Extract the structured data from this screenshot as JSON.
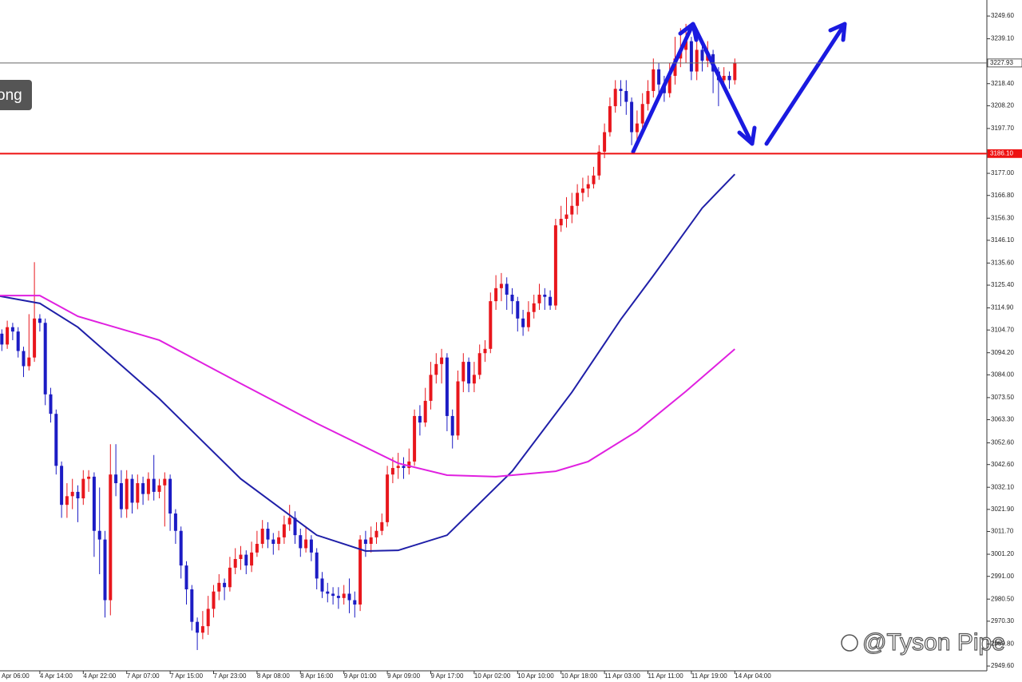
{
  "chart_data": {
    "type": "candlestick",
    "categories": [
      "Apr 06:00",
      null,
      null,
      null,
      null,
      null,
      null,
      null,
      "4 Apr 14:00",
      null,
      null,
      null,
      null,
      null,
      null,
      null,
      "4 Apr 22:00",
      null,
      null,
      null,
      null,
      null,
      null,
      null,
      "7 Apr 07:00",
      null,
      null,
      null,
      null,
      null,
      null,
      null,
      "7 Apr 15:00",
      null,
      null,
      null,
      null,
      null,
      null,
      null,
      "7 Apr 23:00",
      null,
      null,
      null,
      null,
      null,
      null,
      null,
      "8 Apr 08:00",
      null,
      null,
      null,
      null,
      null,
      null,
      null,
      "8 Apr 16:00",
      null,
      null,
      null,
      null,
      null,
      null,
      null,
      "9 Apr 01:00",
      null,
      null,
      null,
      null,
      null,
      null,
      null,
      "9 Apr 09:00",
      null,
      null,
      null,
      null,
      null,
      null,
      null,
      "9 Apr 17:00",
      null,
      null,
      null,
      null,
      null,
      null,
      null,
      "10 Apr 02:00",
      null,
      null,
      null,
      null,
      null,
      null,
      null,
      "10 Apr 10:00",
      null,
      null,
      null,
      null,
      null,
      null,
      null,
      "10 Apr 18:00",
      null,
      null,
      null,
      null,
      null,
      null,
      null,
      "11 Apr 03:00",
      null,
      null,
      null,
      null,
      null,
      null,
      null,
      "11 Apr 11:00",
      null,
      null,
      null,
      null,
      null,
      null,
      null,
      "11 Apr 19:00",
      null,
      null,
      null,
      null,
      null,
      null,
      null,
      "14 Apr 04:00"
    ],
    "open": [
      3100,
      3103,
      3098,
      3106,
      3104,
      3095,
      3088,
      3092,
      3110,
      3108,
      3075,
      3066,
      3042,
      3024,
      3028,
      3030,
      3027,
      3036,
      3037,
      3012,
      3008,
      2980,
      3038,
      3034,
      3022,
      3036,
      3025,
      3034,
      3029,
      3036,
      3030,
      3033,
      3036,
      3020,
      3012,
      2996,
      2985,
      2970,
      2965,
      2968,
      2976,
      2984,
      2988,
      2986,
      2995,
      2999,
      3001,
      2996,
      3002,
      3006,
      3013,
      3008,
      3006,
      3009,
      3015,
      3018,
      3010,
      3004,
      3008,
      3002,
      2990,
      2984,
      2983,
      2982,
      2981,
      2983,
      2980,
      2978,
      3008,
      3006,
      3009,
      3012,
      3016,
      3038,
      3041,
      3042,
      3041,
      3044,
      3065,
      3062,
      3072,
      3084,
      3089,
      3092,
      3065,
      3056,
      3081,
      3090,
      3080,
      3084,
      3094,
      3096,
      3118,
      3124,
      3126,
      3121,
      3118,
      3110,
      3106,
      3113,
      3117,
      3121,
      3120,
      3116,
      3153,
      3156,
      3158,
      3162,
      3168,
      3170,
      3172,
      3176,
      3187,
      3196,
      3208,
      3216,
      3215,
      3210,
      3196,
      3200,
      3209,
      3215,
      3225,
      3218,
      3214,
      3222,
      3230,
      3234,
      3238,
      3224,
      3234,
      3229,
      3232,
      3224,
      3220,
      3222,
      3220
    ],
    "high": [
      3106,
      3105,
      3109,
      3108,
      3106,
      3097,
      3112,
      3136,
      3112,
      3110,
      3078,
      3068,
      3044,
      3034,
      3036,
      3033,
      3040,
      3040,
      3039,
      3032,
      3012,
      3052,
      3052,
      3040,
      3040,
      3038,
      3038,
      3037,
      3039,
      3047,
      3036,
      3039,
      3038,
      3022,
      3014,
      2998,
      2987,
      2972,
      2975,
      2982,
      2987,
      2992,
      2990,
      3000,
      3004,
      3005,
      3003,
      3007,
      3012,
      3017,
      3016,
      3011,
      3012,
      3019,
      3024,
      3021,
      3013,
      3014,
      3010,
      3004,
      2993,
      2988,
      2986,
      2986,
      2987,
      2990,
      2984,
      3010,
      3012,
      3014,
      3016,
      3020,
      3042,
      3046,
      3048,
      3046,
      3050,
      3068,
      3070,
      3078,
      3090,
      3094,
      3096,
      3094,
      3068,
      3086,
      3094,
      3092,
      3090,
      3098,
      3100,
      3122,
      3130,
      3131,
      3129,
      3124,
      3120,
      3114,
      3118,
      3121,
      3126,
      3124,
      3123,
      3156,
      3162,
      3166,
      3168,
      3172,
      3175,
      3176,
      3180,
      3190,
      3200,
      3212,
      3220,
      3220,
      3220,
      3212,
      3206,
      3214,
      3220,
      3230,
      3228,
      3222,
      3228,
      3240,
      3244,
      3246,
      3240,
      3238,
      3236,
      3238,
      3234,
      3226,
      3226,
      3224,
      3230
    ],
    "low": [
      3097,
      3095,
      3096,
      3100,
      3092,
      3083,
      3086,
      3090,
      3104,
      3070,
      3062,
      3038,
      3018,
      3018,
      3022,
      3016,
      3024,
      3030,
      3000,
      2992,
      2972,
      2973,
      3028,
      3018,
      3018,
      3020,
      3022,
      3024,
      3026,
      3026,
      3027,
      3014,
      3012,
      3006,
      2990,
      2978,
      2966,
      2957,
      2962,
      2964,
      2972,
      2980,
      2980,
      2984,
      2992,
      2994,
      2992,
      2993,
      3000,
      3004,
      3004,
      3001,
      3003,
      3006,
      3012,
      3006,
      3000,
      3002,
      2998,
      2985,
      2981,
      2979,
      2978,
      2976,
      2978,
      2974,
      2972,
      2975,
      3000,
      3002,
      3006,
      3010,
      3014,
      3034,
      3036,
      3036,
      3038,
      3042,
      3056,
      3060,
      3068,
      3080,
      3080,
      3058,
      3050,
      3054,
      3076,
      3076,
      3076,
      3082,
      3090,
      3094,
      3114,
      3118,
      3114,
      3112,
      3104,
      3102,
      3104,
      3110,
      3114,
      3114,
      3114,
      3114,
      3150,
      3152,
      3154,
      3158,
      3164,
      3166,
      3170,
      3174,
      3184,
      3194,
      3205,
      3208,
      3204,
      3190,
      3192,
      3198,
      3206,
      3212,
      3212,
      3210,
      3212,
      3218,
      3226,
      3228,
      3220,
      3220,
      3224,
      3226,
      3214,
      3208,
      3216,
      3216,
      3218
    ],
    "close": [
      3103,
      3098,
      3106,
      3104,
      3095,
      3088,
      3092,
      3110,
      3108,
      3075,
      3066,
      3042,
      3024,
      3028,
      3030,
      3027,
      3036,
      3037,
      3012,
      3008,
      2980,
      3038,
      3034,
      3022,
      3036,
      3025,
      3034,
      3029,
      3036,
      3030,
      3033,
      3036,
      3020,
      3012,
      2996,
      2985,
      2970,
      2965,
      2968,
      2976,
      2984,
      2988,
      2986,
      2995,
      2999,
      3001,
      2996,
      3002,
      3006,
      3013,
      3008,
      3006,
      3009,
      3015,
      3018,
      3010,
      3004,
      3008,
      3002,
      2990,
      2984,
      2983,
      2982,
      2981,
      2983,
      2980,
      2978,
      3008,
      3006,
      3009,
      3012,
      3016,
      3038,
      3041,
      3042,
      3041,
      3044,
      3065,
      3062,
      3072,
      3084,
      3089,
      3092,
      3065,
      3056,
      3081,
      3090,
      3080,
      3084,
      3094,
      3096,
      3118,
      3124,
      3126,
      3121,
      3118,
      3110,
      3106,
      3113,
      3117,
      3121,
      3120,
      3116,
      3153,
      3156,
      3158,
      3162,
      3168,
      3170,
      3172,
      3176,
      3187,
      3196,
      3208,
      3216,
      3215,
      3210,
      3196,
      3200,
      3209,
      3215,
      3225,
      3218,
      3214,
      3222,
      3230,
      3234,
      3238,
      3224,
      3234,
      3229,
      3232,
      3224,
      3220,
      3222,
      3220,
      3227.93
    ],
    "up_color": "#e8161c",
    "down_color": "#1c1cc4",
    "series": [
      {
        "color": "#1f1fa8",
        "x": [
          0,
          8,
          15,
          30,
          45,
          59,
          68,
          74,
          83,
          95,
          106,
          115,
          121,
          130,
          136
        ],
        "values": [
          3120.6,
          3117,
          3106,
          3073,
          3036,
          3010,
          3002.7,
          3003,
          3010,
          3039.5,
          3076,
          3109.6,
          3129.8,
          3161,
          3176.6
        ]
      },
      {
        "color": "#e020e0",
        "x": [
          0,
          8,
          15,
          30,
          45,
          59,
          74,
          83,
          92,
          103,
          109,
          118,
          127,
          136
        ],
        "values": [
          3120.6,
          3120.6,
          3111,
          3100,
          3080,
          3061.6,
          3043.2,
          3037.7,
          3037,
          3039.5,
          3044,
          3058,
          3076.4,
          3095.9
        ]
      }
    ],
    "hlines": [
      {
        "value": 3186.1,
        "label": "3186.10",
        "color": "#ee1111"
      },
      {
        "value": 3227.93,
        "label": "3227.93",
        "color": "#666666"
      }
    ],
    "ylim": [
      2947.4,
      3257.0
    ],
    "yticks": [
      {
        "value": 3249.6,
        "label": "3249.60"
      },
      {
        "value": 3239.1,
        "label": "3239.10"
      },
      {
        "value": 3218.4,
        "label": "3218.40"
      },
      {
        "value": 3208.2,
        "label": "3208.20"
      },
      {
        "value": 3197.7,
        "label": "3197.70"
      },
      {
        "value": 3177.0,
        "label": "3177.00"
      },
      {
        "value": 3166.8,
        "label": "3166.80"
      },
      {
        "value": 3156.3,
        "label": "3156.30"
      },
      {
        "value": 3146.1,
        "label": "3146.10"
      },
      {
        "value": 3135.6,
        "label": "3135.60"
      },
      {
        "value": 3125.4,
        "label": "3125.40"
      },
      {
        "value": 3114.9,
        "label": "3114.90"
      },
      {
        "value": 3104.7,
        "label": "3104.70"
      },
      {
        "value": 3094.2,
        "label": "3094.20"
      },
      {
        "value": 3084.0,
        "label": "3084.00"
      },
      {
        "value": 3073.5,
        "label": "3073.50"
      },
      {
        "value": 3063.3,
        "label": "3063.30"
      },
      {
        "value": 3052.6,
        "label": "3052.60"
      },
      {
        "value": 3042.6,
        "label": "3042.60"
      },
      {
        "value": 3032.1,
        "label": "3032.10"
      },
      {
        "value": 3021.9,
        "label": "3021.90"
      },
      {
        "value": 3011.7,
        "label": "3011.70"
      },
      {
        "value": 3001.2,
        "label": "3001.20"
      },
      {
        "value": 2991.0,
        "label": "2991.00"
      },
      {
        "value": 2980.5,
        "label": "2980.50"
      },
      {
        "value": 2970.3,
        "label": "2970.30"
      },
      {
        "value": 2959.8,
        "label": "2959.80"
      },
      {
        "value": 2949.6,
        "label": "2949.60"
      }
    ]
  },
  "badge": "ong",
  "watermark": "@Tyson Pipe"
}
